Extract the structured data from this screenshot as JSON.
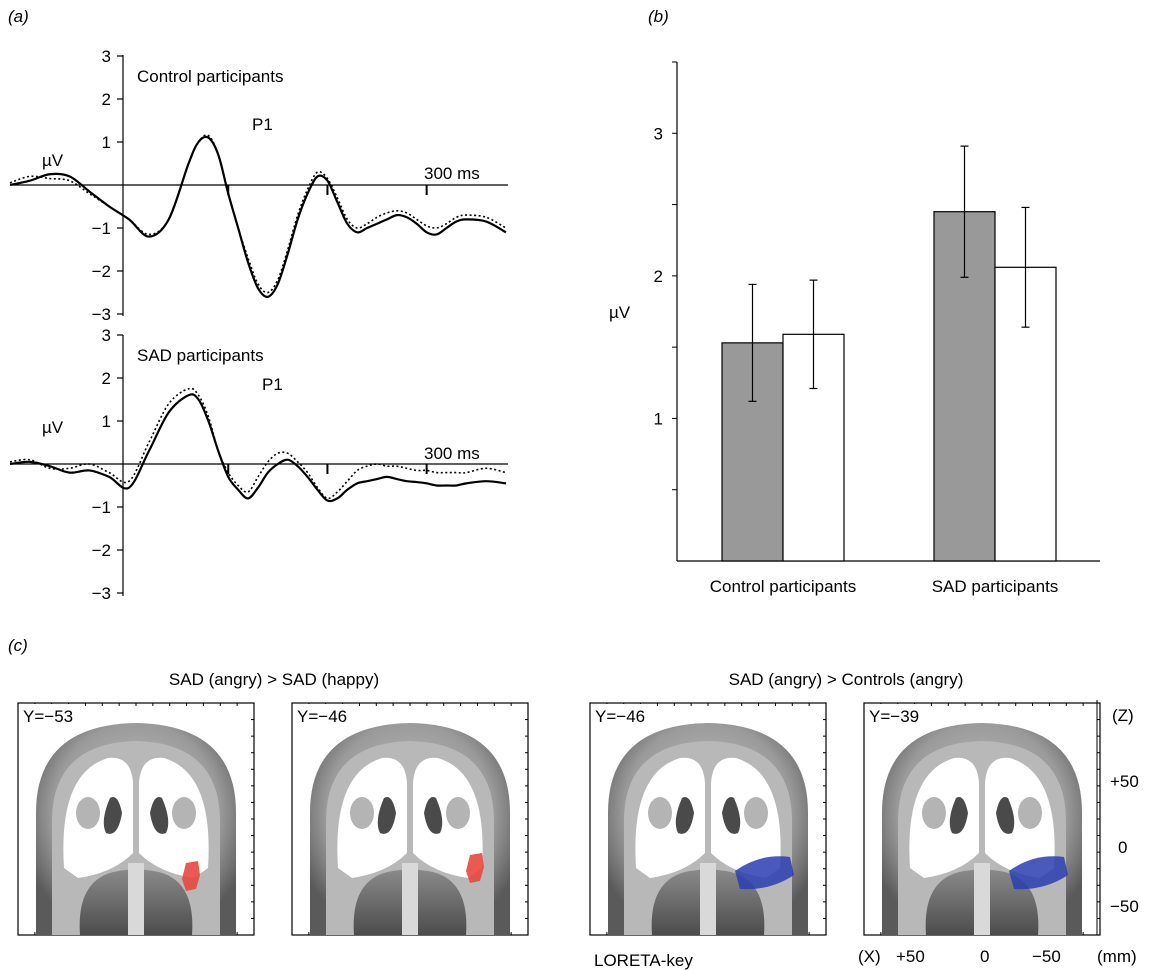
{
  "panel_a": {
    "label": "(a)",
    "unit_label": "µV",
    "time_label": "300 ms",
    "peak_label": "P1",
    "top_plot": {
      "group_label": "Control participants"
    },
    "bottom_plot": {
      "group_label": "SAD participants"
    }
  },
  "panel_b": {
    "label": "(b)",
    "ylabel": "µV"
  },
  "panel_c": {
    "label": "(c)",
    "left_title": "SAD (angry) > SAD (happy)",
    "right_title": "SAD (angry) > Controls (angry)",
    "slices": [
      {
        "label": "Y=−53",
        "activation": "red"
      },
      {
        "label": "Y=−46",
        "activation": "red"
      },
      {
        "label": "Y=−46",
        "activation": "blue"
      },
      {
        "label": "Y=−39",
        "activation": "blue"
      }
    ],
    "z_axis": {
      "label": "(Z)",
      "ticks": [
        "+50",
        "0",
        "−50"
      ]
    },
    "x_axis": {
      "label": "(X)",
      "ticks": [
        "+50",
        "0",
        "−50"
      ],
      "unit": "(mm)"
    },
    "key_label": "LORETA-key",
    "colors": {
      "red": "#e8483f",
      "blue": "#2a3db0"
    }
  },
  "chart_data": [
    {
      "type": "line",
      "title": "Control participants",
      "ylabel": "µV",
      "ylim": [
        -3,
        3
      ],
      "yticks": [
        "3",
        "2",
        "1",
        "−1",
        "−2",
        "−3"
      ],
      "xtick_label": "300 ms",
      "annotation": "P1",
      "x": [
        -100,
        -80,
        -60,
        -40,
        -20,
        0,
        20,
        40,
        60,
        80,
        90,
        100,
        110,
        120,
        130,
        140,
        150,
        160,
        170,
        180,
        190,
        200,
        210,
        220,
        230,
        240,
        250,
        260,
        270,
        280,
        290,
        300,
        310,
        320,
        330,
        340,
        350,
        360,
        380,
        400
      ],
      "series": [
        {
          "style": "solid",
          "values": [
            0.0,
            0.1,
            0.25,
            0.2,
            -0.15,
            -0.5,
            -0.8,
            -1.2,
            -0.8,
            0.5,
            1.0,
            1.1,
            0.7,
            -0.2,
            -1.0,
            -1.8,
            -2.4,
            -2.6,
            -2.3,
            -1.6,
            -0.8,
            -0.2,
            0.2,
            0.1,
            -0.4,
            -0.9,
            -1.1,
            -1.0,
            -0.9,
            -0.8,
            -0.7,
            -0.75,
            -0.9,
            -1.1,
            -1.15,
            -1.0,
            -0.85,
            -0.8,
            -0.85,
            -1.1
          ]
        },
        {
          "style": "dotted",
          "values": [
            0.05,
            0.2,
            0.15,
            0.1,
            -0.2,
            -0.5,
            -0.8,
            -1.15,
            -0.8,
            0.5,
            1.0,
            1.15,
            0.7,
            -0.2,
            -1.0,
            -1.7,
            -2.3,
            -2.5,
            -2.2,
            -1.5,
            -0.7,
            -0.1,
            0.3,
            0.15,
            -0.3,
            -0.8,
            -1.0,
            -0.9,
            -0.75,
            -0.65,
            -0.6,
            -0.65,
            -0.8,
            -0.95,
            -1.0,
            -0.9,
            -0.75,
            -0.7,
            -0.75,
            -1.0
          ]
        }
      ]
    },
    {
      "type": "line",
      "title": "SAD participants",
      "ylabel": "µV",
      "ylim": [
        -3,
        3
      ],
      "yticks": [
        "3",
        "2",
        "1",
        "−1",
        "−2",
        "−3"
      ],
      "xtick_label": "300 ms",
      "annotation": "P1",
      "x": [
        -100,
        -80,
        -60,
        -40,
        -20,
        0,
        20,
        40,
        60,
        80,
        90,
        100,
        110,
        120,
        130,
        140,
        150,
        160,
        170,
        180,
        190,
        200,
        210,
        220,
        230,
        240,
        250,
        260,
        270,
        280,
        290,
        300,
        310,
        320,
        330,
        340,
        350,
        360,
        380,
        400
      ],
      "series": [
        {
          "style": "solid",
          "values": [
            0.0,
            0.05,
            -0.05,
            -0.2,
            -0.15,
            -0.3,
            -0.55,
            0.3,
            1.2,
            1.6,
            1.5,
            1.0,
            0.3,
            -0.3,
            -0.6,
            -0.8,
            -0.55,
            -0.2,
            0.0,
            0.1,
            -0.05,
            -0.3,
            -0.6,
            -0.85,
            -0.8,
            -0.6,
            -0.45,
            -0.4,
            -0.35,
            -0.3,
            -0.35,
            -0.4,
            -0.42,
            -0.45,
            -0.5,
            -0.5,
            -0.5,
            -0.45,
            -0.4,
            -0.45
          ]
        },
        {
          "style": "dotted",
          "values": [
            0.05,
            0.1,
            -0.1,
            -0.1,
            0.0,
            -0.2,
            -0.4,
            0.5,
            1.4,
            1.75,
            1.6,
            1.1,
            0.3,
            -0.2,
            -0.5,
            -0.65,
            -0.3,
            0.05,
            0.25,
            0.25,
            0.05,
            -0.2,
            -0.55,
            -0.8,
            -0.65,
            -0.4,
            -0.15,
            -0.05,
            0.0,
            -0.05,
            -0.05,
            -0.1,
            -0.15,
            -0.15,
            -0.2,
            -0.2,
            -0.2,
            -0.2,
            -0.1,
            -0.2
          ]
        }
      ]
    },
    {
      "type": "bar",
      "categories": [
        "Control participants",
        "SAD participants"
      ],
      "ylabel": "µV",
      "ylim": [
        0,
        3.5
      ],
      "yticks": [
        "1",
        "2",
        "3"
      ],
      "series": [
        {
          "color": "#999999",
          "values": [
            1.53,
            2.45
          ],
          "errors": [
            0.41,
            0.46
          ]
        },
        {
          "color": "#ffffff",
          "values": [
            1.59,
            2.06
          ],
          "errors": [
            0.38,
            0.42
          ]
        }
      ]
    }
  ]
}
